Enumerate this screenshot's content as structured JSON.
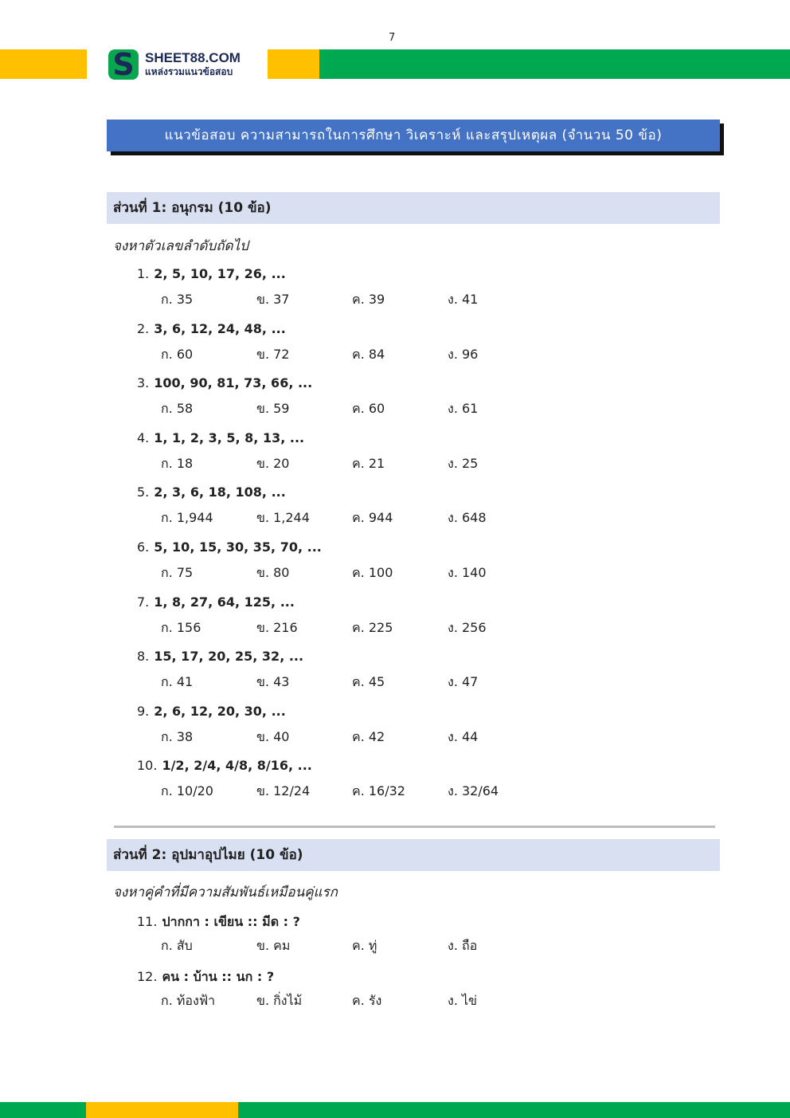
{
  "page_number": "7",
  "brand": {
    "name": "SHEET88.COM",
    "tagline": "แหล่งรวมแนวข้อสอบ",
    "colors": {
      "green": "#00a94f",
      "yellow": "#ffc000",
      "navy": "#1b2a55"
    }
  },
  "title": "แนวข้อสอบ ความสามารถในการศึกษา วิเคราะห์ และสรุปเหตุผล (จำนวน 50 ข้อ)",
  "sections": [
    {
      "header": "ส่วนที่ 1: อนุกรม (10 ข้อ)",
      "instruction": "จงหาตัวเลขลำดับถัดไป",
      "questions": [
        {
          "num": "1.",
          "text": "2, 5, 10, 17, 26, ...",
          "options": [
            "ก. 35",
            "ข. 37",
            "ค. 39",
            "ง. 41"
          ]
        },
        {
          "num": "2.",
          "text": "3, 6, 12, 24, 48, ...",
          "options": [
            "ก. 60",
            "ข. 72",
            "ค. 84",
            "ง. 96"
          ]
        },
        {
          "num": "3.",
          "text": "100, 90, 81, 73, 66, ...",
          "options": [
            "ก. 58",
            "ข. 59",
            "ค. 60",
            "ง. 61"
          ]
        },
        {
          "num": "4.",
          "text": "1, 1, 2, 3, 5, 8, 13, ...",
          "options": [
            "ก. 18",
            "ข. 20",
            "ค. 21",
            "ง. 25"
          ]
        },
        {
          "num": "5.",
          "text": "2, 3, 6, 18, 108, ...",
          "options": [
            "ก. 1,944",
            "ข. 1,244",
            "ค. 944",
            "ง. 648"
          ]
        },
        {
          "num": "6.",
          "text": "5, 10, 15, 30, 35, 70, ...",
          "options": [
            "ก. 75",
            "ข. 80",
            "ค. 100",
            "ง. 140"
          ]
        },
        {
          "num": "7.",
          "text": "1, 8, 27, 64, 125, ...",
          "options": [
            "ก. 156",
            "ข. 216",
            "ค. 225",
            "ง. 256"
          ]
        },
        {
          "num": "8.",
          "text": "15, 17, 20, 25, 32, ...",
          "options": [
            "ก. 41",
            "ข. 43",
            "ค. 45",
            "ง. 47"
          ]
        },
        {
          "num": "9.",
          "text": "2, 6, 12, 20, 30, ...",
          "options": [
            "ก. 38",
            "ข. 40",
            "ค. 42",
            "ง. 44"
          ]
        },
        {
          "num": "10.",
          "text": "1/2, 2/4, 4/8, 8/16, ...",
          "options": [
            "ก. 10/20",
            "ข. 12/24",
            "ค. 16/32",
            "ง. 32/64"
          ]
        }
      ]
    },
    {
      "header": "ส่วนที่ 2: อุปมาอุปไมย (10 ข้อ)",
      "instruction": "จงหาคู่คำที่มีความสัมพันธ์เหมือนคู่แรก",
      "questions": [
        {
          "num": "11.",
          "text": "ปากกา : เขียน :: มีด : ?",
          "options": [
            "ก. สับ",
            "ข. คม",
            "ค. ทู่",
            "ง. ถือ"
          ]
        },
        {
          "num": "12.",
          "text": "คน : บ้าน :: นก : ?",
          "options": [
            "ก. ท้องฟ้า",
            "ข. กิ่งไม้",
            "ค. รัง",
            "ง. ไข่"
          ]
        }
      ]
    }
  ]
}
